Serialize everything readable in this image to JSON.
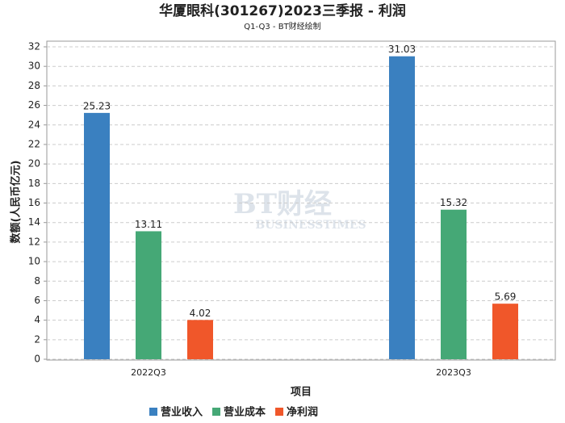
{
  "chart_data": {
    "type": "bar",
    "title": "华厦眼科(301267)2023三季报 - 利润",
    "subtitle": "Q1-Q3 - BT财经绘制",
    "watermark": "BT财经",
    "watermark_sub": "BUSINESSTIMES",
    "x_label": "项目",
    "y_label": "数额(人民币亿元)",
    "categories": [
      "2022Q3",
      "2023Q3"
    ],
    "series": [
      {
        "name": "营业收入",
        "color": "#3a80c0",
        "values": [
          25.23,
          31.03
        ]
      },
      {
        "name": "营业成本",
        "color": "#45a876",
        "values": [
          13.11,
          15.32
        ]
      },
      {
        "name": "净利润",
        "color": "#f0572a",
        "values": [
          4.02,
          5.69
        ]
      }
    ],
    "ylim": [
      0,
      32
    ],
    "yticks": [
      0,
      2,
      4,
      6,
      8,
      10,
      12,
      14,
      16,
      18,
      20,
      22,
      24,
      26,
      28,
      30,
      32
    ],
    "grid": true,
    "legend": "bottom"
  }
}
